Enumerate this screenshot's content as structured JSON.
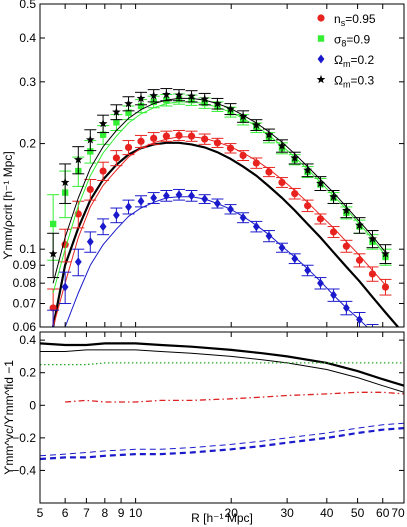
{
  "chart_data": [
    {
      "type": "scatter",
      "panel": "top",
      "ylabel": "ϒmm/ρcrit [h⁻¹ Mpc]",
      "xscale": "log",
      "yscale": "log",
      "xlim": [
        5,
        70
      ],
      "ylim": [
        0.06,
        0.5
      ],
      "yticks": [
        0.06,
        0.07,
        0.08,
        0.09,
        0.1,
        0.2,
        0.3,
        0.4,
        0.5
      ],
      "ytick_labels": [
        "0.06",
        "0.07",
        "0.08",
        "0.09",
        "0.1",
        "0.2",
        "0.3",
        "0.4",
        "0.5"
      ],
      "legend_position": "top-right",
      "r_values": [
        5.5,
        6.0,
        6.6,
        7.2,
        7.9,
        8.7,
        9.5,
        10.4,
        11.4,
        12.5,
        13.7,
        15.0,
        16.5,
        18.1,
        19.9,
        21.8,
        24.0,
        26.3,
        28.9,
        31.7,
        34.8,
        38.2,
        42.0,
        46.1,
        50.7,
        55.7,
        61.2
      ],
      "series": [
        {
          "name": "n_s=0.95",
          "color": "#e8231f",
          "marker": "circle",
          "values": [
            0.068,
            0.103,
            0.126,
            0.148,
            0.167,
            0.182,
            0.195,
            0.203,
            0.207,
            0.21,
            0.211,
            0.21,
            0.206,
            0.201,
            0.194,
            0.185,
            0.176,
            0.166,
            0.155,
            0.144,
            0.133,
            0.122,
            0.112,
            0.102,
            0.093,
            0.085,
            0.078
          ],
          "errors": [
            0.009,
            0.011,
            0.011,
            0.01,
            0.01,
            0.009,
            0.009,
            0.008,
            0.008,
            0.007,
            0.007,
            0.007,
            0.007,
            0.006,
            0.006,
            0.006,
            0.006,
            0.005,
            0.005,
            0.005,
            0.005,
            0.004,
            0.004,
            0.004,
            0.004,
            0.004,
            0.004
          ],
          "model": [
            0.06,
            0.08,
            0.108,
            0.132,
            0.152,
            0.168,
            0.183,
            0.194,
            0.201,
            0.206,
            0.209,
            0.209,
            0.207,
            0.202,
            0.196,
            0.188,
            0.179,
            0.169,
            0.158,
            0.147,
            0.136,
            0.125,
            0.115,
            0.105,
            0.096,
            0.087,
            0.079
          ]
        },
        {
          "name": "σ_8=0.9",
          "color": "#33ee33",
          "marker": "square",
          "values": [
            0.118,
            0.145,
            0.167,
            0.19,
            0.212,
            0.23,
            0.245,
            0.256,
            0.263,
            0.266,
            0.268,
            0.266,
            0.261,
            0.255,
            0.246,
            0.234,
            0.222,
            0.208,
            0.194,
            0.18,
            0.166,
            0.153,
            0.14,
            0.127,
            0.116,
            0.105,
            0.095
          ],
          "errors": [
            0.025,
            0.022,
            0.016,
            0.014,
            0.013,
            0.012,
            0.011,
            0.011,
            0.01,
            0.01,
            0.009,
            0.009,
            0.009,
            0.008,
            0.008,
            0.008,
            0.007,
            0.007,
            0.007,
            0.006,
            0.006,
            0.006,
            0.005,
            0.005,
            0.005,
            0.005,
            0.005
          ],
          "model": [
            0.075,
            0.1,
            0.133,
            0.162,
            0.188,
            0.21,
            0.229,
            0.243,
            0.253,
            0.26,
            0.263,
            0.263,
            0.26,
            0.254,
            0.246,
            0.236,
            0.224,
            0.211,
            0.197,
            0.183,
            0.169,
            0.155,
            0.142,
            0.13,
            0.118,
            0.107,
            0.096
          ]
        },
        {
          "name": "Ω_m=0.2",
          "color": "#1a1acc",
          "marker": "diamond",
          "values": [
            0.059,
            0.078,
            0.092,
            0.105,
            0.116,
            0.125,
            0.132,
            0.137,
            0.14,
            0.142,
            0.143,
            0.142,
            0.139,
            0.135,
            0.13,
            0.123,
            0.116,
            0.109,
            0.101,
            0.094,
            0.087,
            0.08,
            0.074,
            0.068,
            0.063,
            0.058,
            0.054
          ],
          "errors": [
            0.008,
            0.008,
            0.008,
            0.007,
            0.006,
            0.006,
            0.006,
            0.005,
            0.005,
            0.005,
            0.005,
            0.005,
            0.004,
            0.004,
            0.004,
            0.004,
            0.004,
            0.004,
            0.003,
            0.003,
            0.003,
            0.003,
            0.003,
            0.003,
            0.003,
            0.003,
            0.003
          ],
          "model": [
            0.048,
            0.06,
            0.075,
            0.09,
            0.103,
            0.114,
            0.124,
            0.131,
            0.136,
            0.14,
            0.141,
            0.141,
            0.139,
            0.135,
            0.13,
            0.124,
            0.117,
            0.11,
            0.102,
            0.095,
            0.088,
            0.081,
            0.074,
            0.068,
            0.063,
            0.058,
            0.053
          ]
        },
        {
          "name": "Ω_m=0.3",
          "color": "#000000",
          "marker": "star",
          "values": [
            0.097,
            0.155,
            0.18,
            0.205,
            0.228,
            0.246,
            0.26,
            0.269,
            0.274,
            0.276,
            0.275,
            0.273,
            0.268,
            0.26,
            0.251,
            0.239,
            0.226,
            0.212,
            0.197,
            0.182,
            0.168,
            0.154,
            0.141,
            0.129,
            0.117,
            0.107,
            0.097
          ],
          "errors": [
            0.014,
            0.02,
            0.016,
            0.014,
            0.013,
            0.012,
            0.012,
            0.011,
            0.011,
            0.011,
            0.01,
            0.01,
            0.01,
            0.009,
            0.009,
            0.009,
            0.008,
            0.008,
            0.008,
            0.007,
            0.007,
            0.007,
            0.006,
            0.006,
            0.006,
            0.006,
            0.006
          ],
          "model": [
            0.08,
            0.108,
            0.14,
            0.17,
            0.196,
            0.218,
            0.236,
            0.25,
            0.26,
            0.266,
            0.269,
            0.269,
            0.266,
            0.26,
            0.252,
            0.241,
            0.229,
            0.216,
            0.202,
            0.187,
            0.172,
            0.158,
            0.145,
            0.132,
            0.12,
            0.109,
            0.098
          ]
        }
      ],
      "fiducial_curve": {
        "color": "#000000",
        "x": [
          5.5,
          6.0,
          6.6,
          7.2,
          7.9,
          8.7,
          9.5,
          10.4,
          11.4,
          12.5,
          13.7,
          15.0,
          16.5,
          18.1,
          19.9,
          21.8,
          24.0,
          26.3,
          28.9,
          31.7,
          34.8,
          38.2,
          42.0,
          46.1,
          50.7,
          55.7,
          61.2,
          67.0
        ],
        "y": [
          0.06,
          0.09,
          0.115,
          0.138,
          0.158,
          0.174,
          0.186,
          0.194,
          0.199,
          0.201,
          0.201,
          0.199,
          0.195,
          0.189,
          0.181,
          0.172,
          0.162,
          0.151,
          0.14,
          0.129,
          0.118,
          0.108,
          0.098,
          0.089,
          0.081,
          0.073,
          0.066,
          0.06
        ]
      }
    },
    {
      "type": "line",
      "panel": "bottom",
      "xlabel": "R [h⁻¹ Mpc]",
      "ylabel": "ϒmm^vc/ϒmm^fid −1",
      "xscale": "log",
      "xlim": [
        5,
        70
      ],
      "ylim": [
        -0.6,
        0.45
      ],
      "xticks": [
        5,
        6,
        7,
        8,
        9,
        10,
        20,
        30,
        40,
        50,
        60,
        70
      ],
      "xtick_labels": [
        "5",
        "6",
        "7",
        "8",
        "9",
        "10",
        "20",
        "30",
        "40",
        "50",
        "60",
        "70"
      ],
      "yticks": [
        -0.4,
        -0.2,
        0,
        0.2,
        0.4
      ],
      "ytick_labels": [
        "−0.4",
        "−0.2",
        "0",
        "0.2",
        "0.4"
      ],
      "x": [
        5,
        6,
        7,
        8,
        10,
        12,
        15,
        20,
        25,
        30,
        40,
        50,
        60,
        70
      ],
      "series": [
        {
          "color": "#000000",
          "style": "solid-thick",
          "values": [
            0.38,
            0.37,
            0.37,
            0.38,
            0.38,
            0.37,
            0.36,
            0.34,
            0.32,
            0.3,
            0.26,
            0.21,
            0.16,
            0.12
          ]
        },
        {
          "color": "#000000",
          "style": "solid-thin",
          "values": [
            0.33,
            0.33,
            0.34,
            0.34,
            0.34,
            0.33,
            0.32,
            0.3,
            0.28,
            0.26,
            0.22,
            0.17,
            0.12,
            0.08
          ]
        },
        {
          "color": "#22aa22",
          "style": "dotted",
          "values": [
            0.25,
            0.25,
            0.25,
            0.26,
            0.26,
            0.26,
            0.26,
            0.26,
            0.26,
            0.26,
            0.26,
            0.26,
            0.26,
            0.26
          ]
        },
        {
          "color": "#dd2222",
          "style": "dashdot",
          "values": [
            null,
            0.02,
            0.03,
            0.02,
            0.02,
            0.03,
            0.03,
            0.04,
            0.05,
            0.06,
            0.07,
            0.08,
            0.08,
            0.07
          ]
        },
        {
          "color": "#1a1acc",
          "style": "dashed-thick",
          "values": [
            -0.33,
            -0.32,
            -0.32,
            -0.31,
            -0.3,
            -0.3,
            -0.29,
            -0.27,
            -0.25,
            -0.23,
            -0.2,
            -0.17,
            -0.15,
            -0.14
          ]
        },
        {
          "color": "#1a1acc",
          "style": "dashed-thin",
          "values": [
            -0.31,
            -0.3,
            -0.29,
            -0.28,
            -0.27,
            -0.27,
            -0.26,
            -0.24,
            -0.22,
            -0.2,
            -0.17,
            -0.14,
            -0.12,
            -0.11
          ]
        }
      ]
    }
  ]
}
